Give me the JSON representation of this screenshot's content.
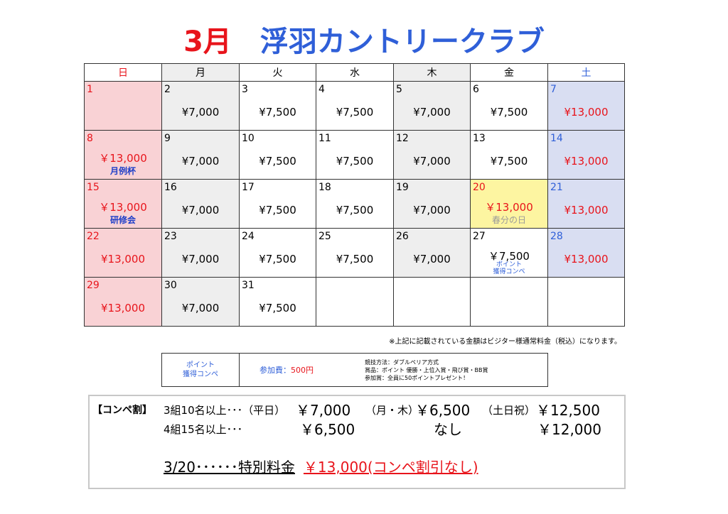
{
  "title": {
    "month": "3月",
    "club": "浮羽カントリークラブ"
  },
  "weekdays": [
    "日",
    "月",
    "火",
    "水",
    "木",
    "金",
    "土"
  ],
  "weeks": [
    [
      {
        "day": "1",
        "price": "",
        "note": ""
      },
      {
        "day": "2",
        "price": "¥7,000",
        "note": ""
      },
      {
        "day": "3",
        "price": "¥7,500",
        "note": ""
      },
      {
        "day": "4",
        "price": "¥7,500",
        "note": ""
      },
      {
        "day": "5",
        "price": "¥7,000",
        "note": ""
      },
      {
        "day": "6",
        "price": "¥7,500",
        "note": ""
      },
      {
        "day": "7",
        "price": "¥13,000",
        "note": ""
      }
    ],
    [
      {
        "day": "8",
        "price": "￥13,000",
        "note": "月例杯"
      },
      {
        "day": "9",
        "price": "¥7,000",
        "note": ""
      },
      {
        "day": "10",
        "price": "¥7,500",
        "note": ""
      },
      {
        "day": "11",
        "price": "¥7,500",
        "note": ""
      },
      {
        "day": "12",
        "price": "¥7,000",
        "note": ""
      },
      {
        "day": "13",
        "price": "¥7,500",
        "note": ""
      },
      {
        "day": "14",
        "price": "¥13,000",
        "note": ""
      }
    ],
    [
      {
        "day": "15",
        "price": "￥13,000",
        "note": "研修会"
      },
      {
        "day": "16",
        "price": "¥7,000",
        "note": ""
      },
      {
        "day": "17",
        "price": "¥7,500",
        "note": ""
      },
      {
        "day": "18",
        "price": "¥7,500",
        "note": ""
      },
      {
        "day": "19",
        "price": "¥7,000",
        "note": ""
      },
      {
        "day": "20",
        "price": "￥13,000",
        "note": "春分の日"
      },
      {
        "day": "21",
        "price": "¥13,000",
        "note": ""
      }
    ],
    [
      {
        "day": "22",
        "price": "¥13,000",
        "note": ""
      },
      {
        "day": "23",
        "price": "¥7,000",
        "note": ""
      },
      {
        "day": "24",
        "price": "¥7,500",
        "note": ""
      },
      {
        "day": "25",
        "price": "¥7,500",
        "note": ""
      },
      {
        "day": "26",
        "price": "¥7,000",
        "note": ""
      },
      {
        "day": "27",
        "price": "￥7,500",
        "note": "ポイント\n獲得コンペ"
      },
      {
        "day": "28",
        "price": "¥13,000",
        "note": ""
      }
    ],
    [
      {
        "day": "29",
        "price": "¥13,000",
        "note": ""
      },
      {
        "day": "30",
        "price": "¥7,000",
        "note": ""
      },
      {
        "day": "31",
        "price": "¥7,500",
        "note": ""
      },
      {
        "day": "",
        "price": "",
        "note": ""
      },
      {
        "day": "",
        "price": "",
        "note": ""
      },
      {
        "day": "",
        "price": "",
        "note": ""
      },
      {
        "day": "",
        "price": "",
        "note": ""
      }
    ]
  ],
  "disclaimer": "※上記に記載されている金額はビジター様通常料金（税込）になります。",
  "point_info": {
    "label_line1": "ポイント",
    "label_line2": "獲得コンペ",
    "fee_label": "参加費：",
    "fee_amount": "500円",
    "rule1": "競技方法：ダブルペリア方式",
    "rule2": "賞品：ポイント 優勝・上位入賞・飛び賞・BB賞",
    "rule3": "参加賞：全員に50ポイントプレゼント！"
  },
  "compe_discount": {
    "heading": "【コンペ割】",
    "row1_cond": "3組10名以上･･･（平日）",
    "row1_weekday_price": "￥7,000",
    "row1_montue_label": "（月・木）",
    "row1_montue_price": "￥6,500",
    "row1_holiday_label": "（土日祝）",
    "row1_holiday_price": "￥12,500",
    "row2_cond": "4組15名以上･･･",
    "row2_weekday_price": "￥6,500",
    "row2_montue_price": "なし",
    "row2_holiday_price": "￥12,000",
    "special_label": "3/20･･････特別料金",
    "special_price": "￥13,000(コンペ割引なし)"
  },
  "colors": {
    "red": "#e8141b",
    "blue": "#2f5fd8",
    "sunday_bg": "#f9d2d5",
    "saturday_bg": "#d9def2",
    "mon_thu_bg": "#eeeeee",
    "holiday_bg": "#fdf5a1"
  }
}
